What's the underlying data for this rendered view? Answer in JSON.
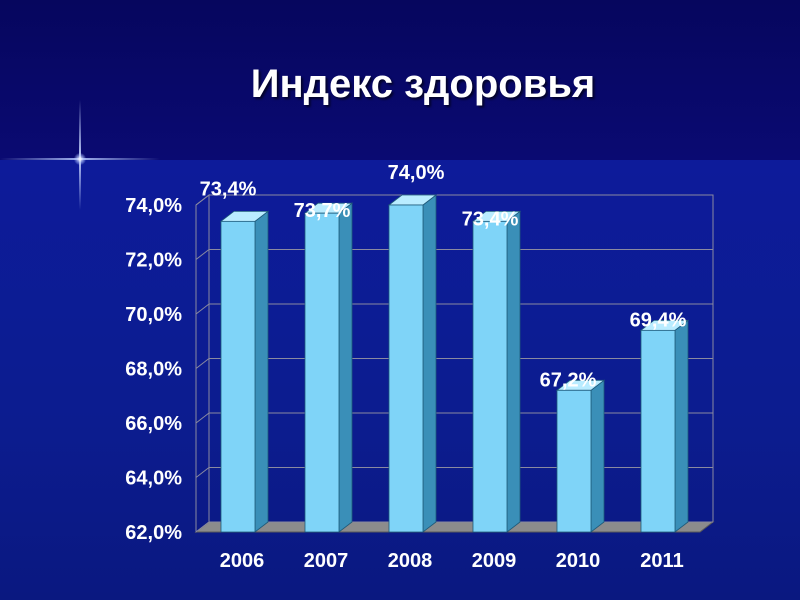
{
  "title": "Индекс здоровья",
  "chart_data": {
    "type": "bar",
    "title": "Индекс здоровья",
    "categories": [
      "2006",
      "2007",
      "2008",
      "2009",
      "2010",
      "2011"
    ],
    "values": [
      73.4,
      73.7,
      74.0,
      73.4,
      67.2,
      69.4
    ],
    "value_labels": [
      "73,4%",
      "73,7%",
      "74,0%",
      "73,4%",
      "67,2%",
      "69,4%"
    ],
    "ylim": [
      62,
      74
    ],
    "yticks": [
      62,
      64,
      66,
      68,
      70,
      72,
      74
    ],
    "ytick_labels": [
      "62,0%",
      "64,0%",
      "66,0%",
      "68,0%",
      "70,0%",
      "72,0%",
      "74,0%"
    ],
    "grid": true,
    "legend": "none",
    "colors": {
      "bar": "#7fd4f8",
      "bar_side": "#3a8fb8",
      "bar_top": "#b9ecff",
      "gridline": "#8a8aa0",
      "text": "#ffffff"
    }
  }
}
